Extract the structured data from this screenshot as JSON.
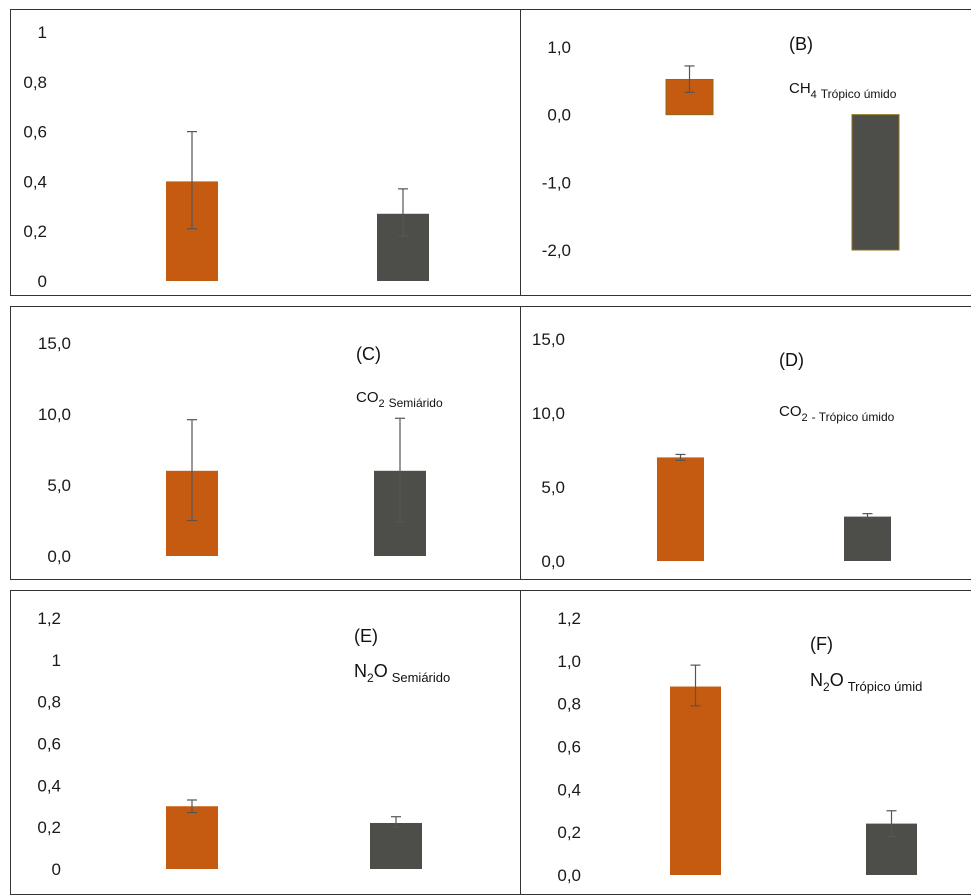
{
  "colors": {
    "orange": "#c55a11",
    "gray": "#4d4d4a",
    "errorbar": "#555555"
  },
  "chart_data": [
    {
      "id": "A",
      "type": "bar",
      "letter": "",
      "label": {
        "main": "",
        "sub": "",
        "sub2": ""
      },
      "ytick_labels": [
        "0",
        "0,2",
        "0,4",
        "0,6",
        "0,8",
        "1"
      ],
      "ytick_values": [
        0,
        0.2,
        0.4,
        0.6,
        0.8,
        1
      ],
      "ylim": [
        0,
        1
      ],
      "bars": [
        {
          "value": 0.4,
          "err_low": 0.21,
          "err_high": 0.6,
          "color": "orange"
        },
        {
          "value": 0.27,
          "err_low": 0.18,
          "err_high": 0.37,
          "color": "gray"
        }
      ]
    },
    {
      "id": "B",
      "type": "bar",
      "letter": "(B)",
      "label": {
        "main": "CH",
        "sub": "4",
        "sub2": "Trópico úmido"
      },
      "ytick_labels": [
        "-2,0",
        "-1,0",
        "0,0",
        "1,0"
      ],
      "ytick_values": [
        -2,
        -1,
        0,
        1
      ],
      "ylim": [
        -2,
        1
      ],
      "bars": [
        {
          "value": 0.52,
          "err_low": 0.33,
          "err_high": 0.72,
          "color": "orange"
        },
        {
          "value": -2.0,
          "err_low": null,
          "err_high": null,
          "color": "gray"
        }
      ]
    },
    {
      "id": "C",
      "type": "bar",
      "letter": "(C)",
      "label": {
        "main": "CO",
        "sub": "2",
        "sub2": "Semiárido"
      },
      "ytick_labels": [
        "0,0",
        "5,0",
        "10,0",
        "15,0"
      ],
      "ytick_values": [
        0,
        5,
        10,
        15
      ],
      "ylim": [
        0,
        15
      ],
      "bars": [
        {
          "value": 6.0,
          "err_low": 2.5,
          "err_high": 9.6,
          "color": "orange"
        },
        {
          "value": 6.0,
          "err_low": 2.4,
          "err_high": 9.7,
          "color": "gray"
        }
      ]
    },
    {
      "id": "D",
      "type": "bar",
      "letter": "(D)",
      "label": {
        "main": "CO",
        "sub": "2",
        "sub2": "- Trópico úmido"
      },
      "ytick_labels": [
        "0,0",
        "5,0",
        "10,0",
        "15,0"
      ],
      "ytick_values": [
        0,
        5,
        10,
        15
      ],
      "ylim": [
        0,
        15
      ],
      "bars": [
        {
          "value": 7.0,
          "err_low": 6.8,
          "err_high": 7.2,
          "color": "orange"
        },
        {
          "value": 3.0,
          "err_low": 2.9,
          "err_high": 3.2,
          "color": "gray"
        }
      ]
    },
    {
      "id": "E",
      "type": "bar",
      "letter": "(E)",
      "label": {
        "main": "N",
        "sub": "2",
        "main2": "O",
        "sub2": "Semiárido"
      },
      "ytick_labels": [
        "0",
        "0,2",
        "0,4",
        "0,6",
        "0,8",
        "1",
        "1,2"
      ],
      "ytick_values": [
        0,
        0.2,
        0.4,
        0.6,
        0.8,
        1.0,
        1.2
      ],
      "ylim": [
        0,
        1.2
      ],
      "bars": [
        {
          "value": 0.3,
          "err_low": 0.27,
          "err_high": 0.33,
          "color": "orange"
        },
        {
          "value": 0.22,
          "err_low": 0.2,
          "err_high": 0.25,
          "color": "gray"
        }
      ]
    },
    {
      "id": "F",
      "type": "bar",
      "letter": "(F)",
      "label": {
        "main": "N",
        "sub": "2",
        "main2": "O",
        "sub2": "Trópico úmid"
      },
      "ytick_labels": [
        "0,0",
        "0,2",
        "0,4",
        "0,6",
        "0,8",
        "1,0",
        "1,2"
      ],
      "ytick_values": [
        0,
        0.2,
        0.4,
        0.6,
        0.8,
        1.0,
        1.2
      ],
      "ylim": [
        0,
        1.2
      ],
      "bars": [
        {
          "value": 0.88,
          "err_low": 0.79,
          "err_high": 0.98,
          "color": "orange"
        },
        {
          "value": 0.24,
          "err_low": 0.18,
          "err_high": 0.3,
          "color": "gray"
        }
      ]
    }
  ]
}
